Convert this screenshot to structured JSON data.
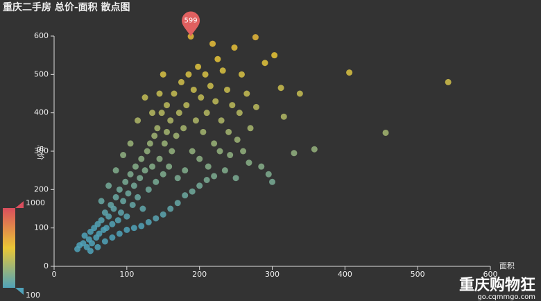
{
  "chart_data": {
    "type": "scatter",
    "title": "重庆二手房 总价-面积 散点图",
    "x_label": "面积",
    "y_label": "总价",
    "xlim": [
      0,
      600
    ],
    "xticks": [
      0,
      100,
      200,
      300,
      400,
      500,
      600
    ],
    "ylim": [
      0,
      600
    ],
    "yticks": [
      0,
      100,
      200,
      300,
      400,
      500,
      600
    ],
    "x": [
      32,
      35,
      40,
      42,
      45,
      48,
      50,
      52,
      55,
      58,
      60,
      62,
      65,
      68,
      70,
      72,
      75,
      78,
      80,
      82,
      85,
      88,
      90,
      92,
      95,
      98,
      100,
      102,
      105,
      108,
      110,
      112,
      115,
      118,
      120,
      122,
      125,
      128,
      130,
      132,
      135,
      138,
      140,
      142,
      145,
      148,
      150,
      152,
      155,
      158,
      160,
      162,
      165,
      168,
      170,
      172,
      175,
      178,
      180,
      182,
      185,
      188,
      190,
      192,
      195,
      198,
      200,
      202,
      205,
      208,
      210,
      212,
      215,
      218,
      220,
      222,
      225,
      228,
      230,
      232,
      235,
      238,
      240,
      242,
      245,
      248,
      250,
      252,
      255,
      258,
      260,
      265,
      268,
      270,
      277,
      278,
      285,
      290,
      295,
      300,
      303,
      312,
      316,
      330,
      338,
      358,
      406,
      456,
      542,
      50,
      60,
      70,
      80,
      90,
      100,
      110,
      120,
      130,
      140,
      150,
      160,
      170,
      180,
      190,
      200,
      210,
      220,
      145,
      150,
      155,
      135,
      125,
      115,
      105,
      95,
      85,
      75,
      65
    ],
    "values": [
      45,
      55,
      60,
      80,
      50,
      70,
      90,
      60,
      100,
      75,
      110,
      85,
      120,
      95,
      140,
      100,
      130,
      160,
      110,
      150,
      180,
      120,
      200,
      140,
      170,
      220,
      130,
      190,
      240,
      160,
      210,
      260,
      180,
      230,
      280,
      150,
      250,
      300,
      200,
      320,
      260,
      340,
      220,
      360,
      280,
      400,
      240,
      320,
      420,
      260,
      380,
      300,
      450,
      340,
      230,
      400,
      480,
      360,
      250,
      420,
      500,
      599,
      300,
      460,
      380,
      520,
      280,
      440,
      350,
      500,
      400,
      260,
      470,
      580,
      320,
      430,
      540,
      300,
      380,
      510,
      250,
      460,
      350,
      290,
      420,
      570,
      230,
      330,
      400,
      500,
      300,
      450,
      270,
      360,
      597,
      415,
      260,
      530,
      240,
      220,
      550,
      465,
      390,
      295,
      450,
      305,
      505,
      348,
      480,
      40,
      50,
      65,
      75,
      85,
      95,
      100,
      105,
      115,
      125,
      135,
      150,
      165,
      185,
      195,
      210,
      225,
      235,
      450,
      500,
      350,
      400,
      440,
      380,
      320,
      290,
      250,
      210,
      170
    ],
    "mark_point": {
      "value": 599,
      "x": 188
    },
    "visual_map": {
      "min": 100,
      "max": 1000,
      "colors": [
        "#50a3ba",
        "#eac736",
        "#d94e5d"
      ]
    }
  },
  "watermark": {
    "name": "重庆购物狂",
    "url": "go.cqmmgo.com"
  }
}
